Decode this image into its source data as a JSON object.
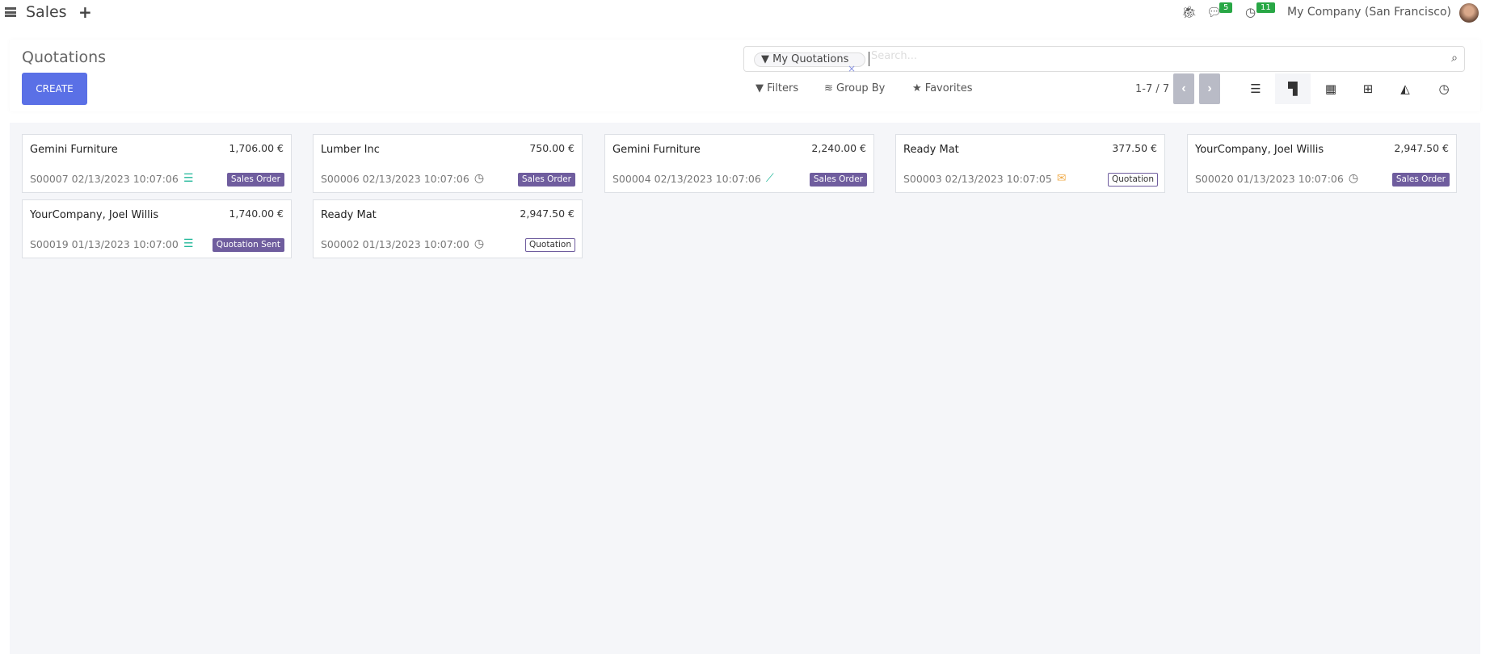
{
  "app": {
    "title": "Sales",
    "messages_count": "5",
    "activities_count": "11",
    "company": "My Company (San Francisco)"
  },
  "control_panel": {
    "title": "Quotations",
    "create_label": "CREATE",
    "search": {
      "facet": "My Quotations",
      "placeholder": "Search..."
    },
    "filters_label": "Filters",
    "group_by_label": "Group By",
    "favorites_label": "Favorites",
    "pager": "1-7 / 7",
    "active_view": "kanban"
  },
  "cards": [
    {
      "name": "Gemini Furniture",
      "amount": "1,706.00 €",
      "ref": "S00007 02/13/2023 10:07:06",
      "activity_icon": "sales-list-icon",
      "activity_color": "#21b799",
      "status": "Sales Order",
      "status_style": "filled"
    },
    {
      "name": "Lumber Inc",
      "amount": "750.00 €",
      "ref": "S00006 02/13/2023 10:07:06",
      "activity_icon": "clock-icon",
      "activity_color": "#666666",
      "status": "Sales Order",
      "status_style": "filled"
    },
    {
      "name": "Gemini Furniture",
      "amount": "2,240.00 €",
      "ref": "S00004 02/13/2023 10:07:06",
      "activity_icon": "chart-line-icon",
      "activity_color": "#21b799",
      "status": "Sales Order",
      "status_style": "filled"
    },
    {
      "name": "Ready Mat",
      "amount": "377.50 €",
      "ref": "S00003 02/13/2023 10:07:05",
      "activity_icon": "envelope-icon",
      "activity_color": "#f0ad4e",
      "status": "Quotation",
      "status_style": "outline"
    },
    {
      "name": "YourCompany, Joel Willis",
      "amount": "2,947.50 €",
      "ref": "S00020 01/13/2023 10:07:06",
      "activity_icon": "clock-icon",
      "activity_color": "#666666",
      "status": "Sales Order",
      "status_style": "filled"
    },
    {
      "name": "YourCompany, Joel Willis",
      "amount": "1,740.00 €",
      "ref": "S00019 01/13/2023 10:07:00",
      "activity_icon": "sales-list-icon",
      "activity_color": "#21b799",
      "status": "Quotation Sent",
      "status_style": "filled"
    },
    {
      "name": "Ready Mat",
      "amount": "2,947.50 €",
      "ref": "S00002 01/13/2023 10:07:00",
      "activity_icon": "clock-icon",
      "activity_color": "#666666",
      "status": "Quotation",
      "status_style": "outline"
    }
  ]
}
